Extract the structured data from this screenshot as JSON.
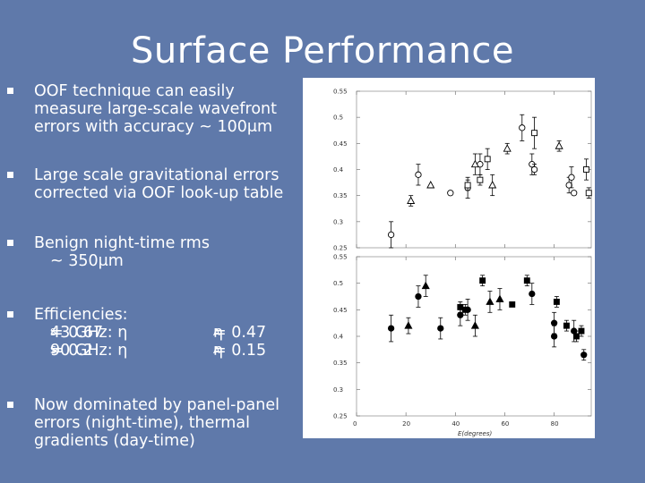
{
  "slide": {
    "title": "Surface Performance",
    "bullets": [
      {
        "lines": [
          "OOF technique can easily",
          "measure large-scale wavefront",
          "errors with accuracy ~ 100μm"
        ]
      },
      {
        "lines": [
          "Large scale gravitational errors",
          "corrected via OOF look-up table"
        ]
      },
      {
        "lines": [
          "Benign night-time rms",
          "~ 350μm"
        ]
      },
      {
        "lines": [
          "Now dominated by panel-panel",
          "errors (night-time), thermal",
          "gradients (day-time)"
        ]
      }
    ],
    "efficiencies": {
      "heading": "Efficiencies:",
      "rows": [
        {
          "band": "43 GHz: η",
          "s_sub": "S",
          "s_val": "= 0.67",
          "a_sym": "η",
          "a_sub": "A",
          "a_val": "= 0.47"
        },
        {
          "band": "90 GHz: η",
          "s_sub": "S",
          "s_val": "= 0.2",
          "a_sym": "η",
          "a_sub": "A",
          "a_val": "= 0.15"
        }
      ]
    }
  },
  "chart_data": [
    {
      "type": "scatter",
      "title": "",
      "xlabel": "",
      "ylabel": "",
      "xlim": [
        0,
        95
      ],
      "ylim": [
        0.25,
        0.55
      ],
      "yticks": [
        "0.55",
        "0.5",
        "0.45",
        "0.4",
        "0.35",
        "0.3",
        "0.25"
      ],
      "series": [
        {
          "name": "circles",
          "marker": "circle-open",
          "x": [
            14,
            25,
            38,
            45,
            50,
            67,
            71,
            72,
            86,
            87,
            88
          ],
          "y": [
            0.275,
            0.39,
            0.355,
            0.365,
            0.41,
            0.48,
            0.41,
            0.4,
            0.37,
            0.385,
            0.355
          ],
          "err": [
            0.025,
            0.02,
            0.0,
            0.02,
            0.02,
            0.025,
            0.02,
            0.01,
            0.015,
            0.02,
            0.0
          ]
        },
        {
          "name": "triangles",
          "marker": "triangle-open",
          "x": [
            22,
            30,
            48,
            55,
            61,
            82
          ],
          "y": [
            0.34,
            0.37,
            0.41,
            0.37,
            0.44,
            0.445
          ],
          "err": [
            0.01,
            0.0,
            0.02,
            0.02,
            0.01,
            0.01
          ]
        },
        {
          "name": "squares",
          "marker": "square-open",
          "x": [
            45,
            50,
            53,
            72,
            93,
            94
          ],
          "y": [
            0.37,
            0.38,
            0.42,
            0.47,
            0.4,
            0.355
          ],
          "err": [
            0.01,
            0.01,
            0.02,
            0.03,
            0.02,
            0.01
          ]
        }
      ]
    },
    {
      "type": "scatter",
      "title": "",
      "xlabel": "E(degrees)",
      "ylabel": "",
      "xlim": [
        0,
        95
      ],
      "ylim": [
        0.25,
        0.55
      ],
      "yticks": [
        "0.55",
        "0.5",
        "0.45",
        "0.4",
        "0.35",
        "0.3",
        "0.25"
      ],
      "xticks": [
        "0",
        "20",
        "40",
        "60",
        "80"
      ],
      "series": [
        {
          "name": "filled-circles",
          "marker": "circle-filled",
          "x": [
            14,
            25,
            34,
            42,
            45,
            71,
            80,
            80,
            88,
            92
          ],
          "y": [
            0.415,
            0.475,
            0.415,
            0.44,
            0.45,
            0.48,
            0.425,
            0.4,
            0.41,
            0.365
          ],
          "err": [
            0.025,
            0.02,
            0.02,
            0.02,
            0.02,
            0.02,
            0.02,
            0.02,
            0.02,
            0.01
          ]
        },
        {
          "name": "filled-triangles",
          "marker": "triangle-filled",
          "x": [
            21,
            28,
            48,
            54,
            58
          ],
          "y": [
            0.42,
            0.495,
            0.42,
            0.465,
            0.47
          ],
          "err": [
            0.015,
            0.02,
            0.02,
            0.02,
            0.02
          ]
        },
        {
          "name": "filled-squares",
          "marker": "square-filled",
          "x": [
            42,
            44,
            51,
            63,
            69,
            81,
            85,
            89,
            91
          ],
          "y": [
            0.455,
            0.45,
            0.505,
            0.46,
            0.505,
            0.465,
            0.42,
            0.4,
            0.41
          ],
          "err": [
            0.01,
            0.01,
            0.01,
            0.0,
            0.01,
            0.01,
            0.01,
            0.01,
            0.01
          ]
        }
      ]
    }
  ]
}
